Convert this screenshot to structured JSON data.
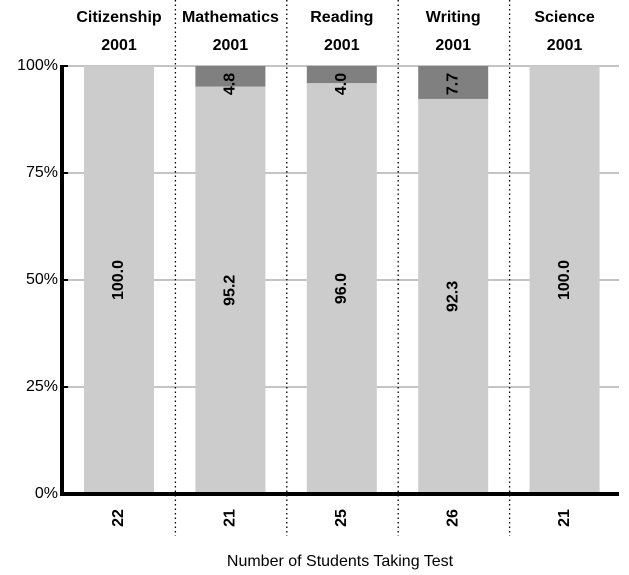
{
  "chart_data": {
    "type": "stacked_bar",
    "categories": [
      [
        "Citizenship",
        "2001"
      ],
      [
        "Mathematics",
        "2001"
      ],
      [
        "Reading",
        "2001"
      ],
      [
        "Writing",
        "2001"
      ],
      [
        "Science",
        "2001"
      ]
    ],
    "series": [
      {
        "color": "#cccccc",
        "values": [
          100,
          95.2,
          96,
          92.3,
          100
        ],
        "value_labels": [
          "100.0",
          "95.2",
          "96.0",
          "92.3",
          "100.0"
        ]
      },
      {
        "color": "#808080",
        "values": [
          null,
          4.8,
          4.0,
          7.7,
          null
        ],
        "value_labels": [
          null,
          "4.8",
          "4.0",
          "7.7",
          null
        ]
      }
    ],
    "student_counts": [
      22,
      21,
      25,
      26,
      21
    ],
    "xlabel": "Number of Students Taking Test",
    "ylim": [
      0,
      100
    ],
    "yticks": [
      {
        "value": 0,
        "label": "0%"
      },
      {
        "value": 25,
        "label": "25%"
      },
      {
        "value": 50,
        "label": "50%"
      },
      {
        "value": 75,
        "label": "75%"
      },
      {
        "value": 100,
        "label": "100%"
      }
    ],
    "grid": true
  }
}
